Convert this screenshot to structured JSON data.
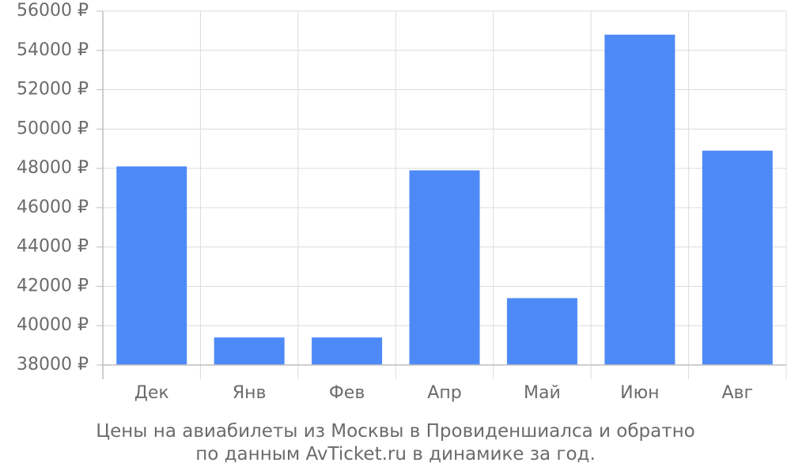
{
  "chart_data": {
    "type": "bar",
    "categories": [
      "Дек",
      "Янв",
      "Фев",
      "Апр",
      "Май",
      "Июн",
      "Авг"
    ],
    "values": [
      48100,
      39400,
      39400,
      47900,
      41400,
      54800,
      48900
    ],
    "ylim": [
      38000,
      56000
    ],
    "yticks": [
      38000,
      40000,
      42000,
      44000,
      46000,
      48000,
      50000,
      52000,
      54000,
      56000
    ],
    "ytick_suffix": " ₽",
    "bar_color": "#4e8af7",
    "grid": true,
    "caption_line1": "Цены на авиабилеты из Москвы в Провиденшиалса и обратно",
    "caption_line2": "по данным AvTicket.ru в динамике за год."
  }
}
